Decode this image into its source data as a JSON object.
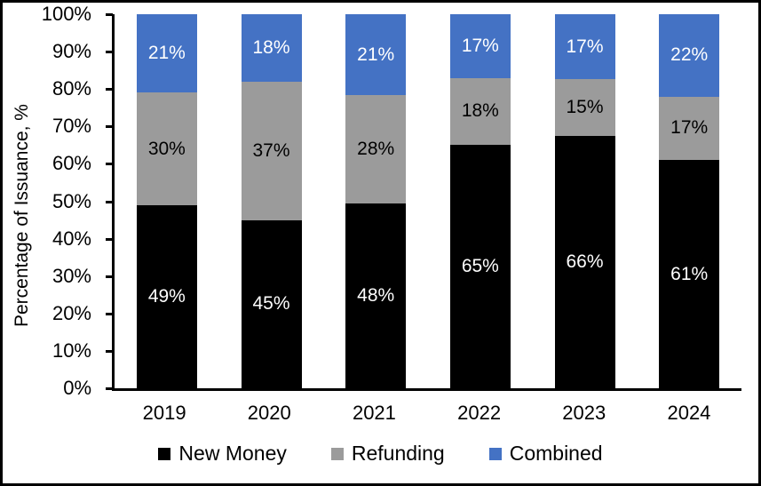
{
  "chart_data": {
    "type": "bar",
    "stacked": true,
    "stacked_mode": "percent",
    "title": "",
    "xlabel": "",
    "ylabel": "Percentage of Issuance, %",
    "ylim": [
      0,
      100
    ],
    "grid": false,
    "legend_position": "bottom",
    "y_ticks": [
      {
        "pct": 0,
        "label": "0%"
      },
      {
        "pct": 10,
        "label": "10%"
      },
      {
        "pct": 20,
        "label": "20%"
      },
      {
        "pct": 30,
        "label": "30%"
      },
      {
        "pct": 40,
        "label": "40%"
      },
      {
        "pct": 50,
        "label": "50%"
      },
      {
        "pct": 60,
        "label": "60%"
      },
      {
        "pct": 70,
        "label": "70%"
      },
      {
        "pct": 80,
        "label": "80%"
      },
      {
        "pct": 90,
        "label": "90%"
      },
      {
        "pct": 100,
        "label": "100%"
      }
    ],
    "categories": [
      "2019",
      "2020",
      "2021",
      "2022",
      "2023",
      "2024"
    ],
    "series": [
      {
        "name": "New Money",
        "color": "#000000",
        "label_color": "#ffffff",
        "values": [
          49,
          45,
          48,
          65,
          66,
          61
        ],
        "labels": [
          "49%",
          "45%",
          "48%",
          "65%",
          "66%",
          "61%"
        ]
      },
      {
        "name": "Refunding",
        "color": "#9B9B9B",
        "label_color": "#000000",
        "values": [
          30,
          37,
          28,
          18,
          15,
          17
        ],
        "labels": [
          "30%",
          "37%",
          "28%",
          "18%",
          "15%",
          "17%"
        ]
      },
      {
        "name": "Combined",
        "color": "#4472C4",
        "label_color": "#ffffff",
        "values": [
          21,
          18,
          21,
          17,
          17,
          22
        ],
        "labels": [
          "21%",
          "18%",
          "21%",
          "17%",
          "17%",
          "22%"
        ]
      }
    ],
    "legend": [
      {
        "label": "New Money",
        "color": "#000000"
      },
      {
        "label": "Refunding",
        "color": "#9B9B9B"
      },
      {
        "label": "Combined",
        "color": "#4472C4"
      }
    ]
  }
}
